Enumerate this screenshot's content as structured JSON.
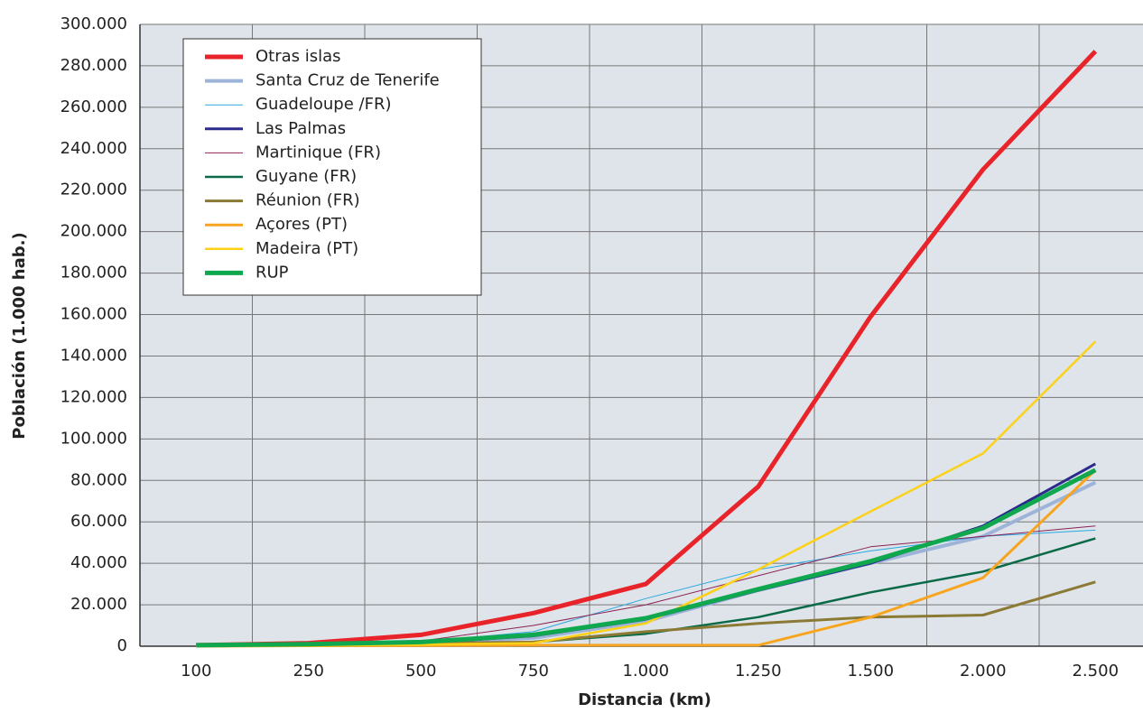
{
  "chart_data": {
    "type": "line",
    "x_label": "Distancia (km)",
    "y_label": "Población (1.000 hab.)",
    "categories": [
      "100",
      "250",
      "500",
      "750",
      "1.000",
      "1.250",
      "1.500",
      "2.000",
      "2.500"
    ],
    "ylim": [
      0,
      300000
    ],
    "yticks": [
      0,
      {
        "value": 20000,
        "label": "20.000"
      },
      {
        "value": 40000,
        "label": "40.000"
      },
      {
        "value": 60000,
        "label": "60.000"
      },
      {
        "value": 80000,
        "label": "80.000"
      },
      {
        "value": 100000,
        "label": "100.000"
      },
      {
        "value": 120000,
        "label": "120.000"
      },
      {
        "value": 140000,
        "label": "140.000"
      },
      {
        "value": 160000,
        "label": "160.000"
      },
      {
        "value": 180000,
        "label": "180.000"
      },
      {
        "value": 200000,
        "label": "200.000"
      },
      {
        "value": 220000,
        "label": "220.000"
      },
      {
        "value": 240000,
        "label": "240.000"
      },
      {
        "value": 260000,
        "label": "260.000"
      },
      {
        "value": 280000,
        "label": "280.000"
      },
      {
        "value": 300000,
        "label": "300.000"
      }
    ],
    "grid": true,
    "legend": "upper left",
    "series": [
      {
        "name": "Otras islas",
        "color": "#e8232a",
        "values": [
          500,
          1500,
          5500,
          16000,
          30000,
          77000,
          159000,
          230000,
          287000
        ]
      },
      {
        "name": "Santa Cruz de Tenerife",
        "color": "#9db4d8",
        "values": [
          500,
          1000,
          1500,
          4000,
          12000,
          27000,
          40000,
          53000,
          79000
        ]
      },
      {
        "name": "Guadeloupe /FR)",
        "color": "#29a8e0",
        "values": [
          300,
          800,
          2000,
          7000,
          23000,
          37000,
          46000,
          53000,
          56000
        ]
      },
      {
        "name": "Las Palmas",
        "color": "#2b2b8c",
        "values": [
          500,
          1000,
          1500,
          5000,
          13000,
          27000,
          40000,
          58000,
          88000
        ]
      },
      {
        "name": "Martinique (FR)",
        "color": "#8b2252",
        "values": [
          300,
          800,
          2500,
          10000,
          20000,
          34000,
          48000,
          53000,
          58000
        ]
      },
      {
        "name": "Guyane (FR)",
        "color": "#0a6a47",
        "values": [
          0,
          500,
          1000,
          2000,
          6000,
          14000,
          26000,
          36000,
          52000
        ]
      },
      {
        "name": "Réunion (FR)",
        "color": "#8b7a35",
        "values": [
          300,
          800,
          1500,
          2000,
          7000,
          11000,
          14000,
          15000,
          31000
        ]
      },
      {
        "name": "Açores (PT)",
        "color": "#f7a51f",
        "values": [
          0,
          200,
          300,
          500,
          500,
          500,
          14000,
          33000,
          85000
        ]
      },
      {
        "name": "Madeira (PT)",
        "color": "#fcd116",
        "values": [
          0,
          300,
          800,
          1500,
          11000,
          37000,
          65000,
          93000,
          147000
        ]
      },
      {
        "name": "RUP",
        "color": "#10a84f",
        "values": [
          500,
          1000,
          2000,
          5500,
          13500,
          27500,
          41000,
          57000,
          85000
        ]
      }
    ]
  }
}
